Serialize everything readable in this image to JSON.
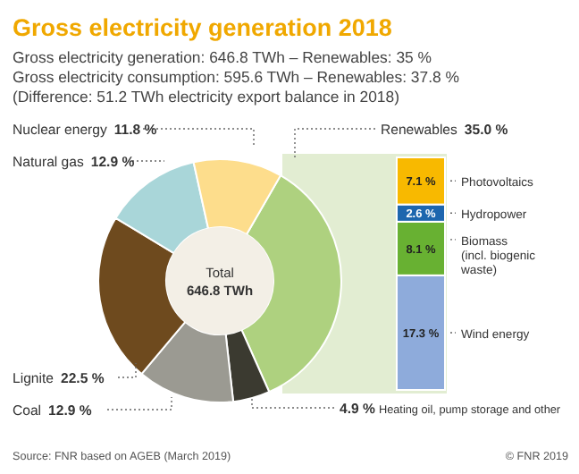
{
  "chart_data": [
    {
      "type": "donut",
      "title": "Gross electricity generation 2018",
      "subtitle": "Gross electricity generation: 646.8 TWh – Renewables: 35 %",
      "annotations": [
        "Gross electricity consumption: 595.6 TWh – Renewables: 37.8 %",
        "(Difference: 51.2 TWh electricity export balance in 2018)",
        "Total\n646.8 TWh",
        "Source: FNR based on AGEB (March 2019)",
        "© FNR 2019"
      ],
      "categories": [
        "Renewables",
        "Heating oil, pump storage and other",
        "Coal",
        "Lignite",
        "Natural gas",
        "Nuclear energy"
      ],
      "values": [
        35.0,
        4.9,
        12.9,
        22.5,
        12.9,
        11.8
      ],
      "value_labels": [
        "35.0 %",
        "4.9 %",
        "12.9 %",
        "22.5 %",
        "12.9 %",
        "11.8 %"
      ],
      "colors": [
        "#aed17f",
        "#3b3a30",
        "#9b9a92",
        "#6e4a1e",
        "#a9d6d9",
        "#fddd8c"
      ]
    },
    {
      "type": "bar",
      "stacked": true,
      "categories": [
        null
      ],
      "series": [
        {
          "name": "Wind energy",
          "color": "#8eabdb",
          "values": [
            17.3
          ],
          "value_labels": [
            "17.3 %"
          ]
        },
        {
          "name": "Biomass (incl. biogenic waste)",
          "color": "#68b132",
          "values": [
            8.1
          ],
          "value_labels": [
            "8.1 %"
          ]
        },
        {
          "name": "Hydropower",
          "color": "#1d66ae",
          "values": [
            2.6
          ],
          "value_labels": [
            "2.6 %"
          ]
        },
        {
          "name": "Photovoltaics",
          "color": "#f8b900",
          "values": [
            7.1
          ],
          "value_labels": [
            "7.1 %"
          ]
        }
      ]
    }
  ]
}
